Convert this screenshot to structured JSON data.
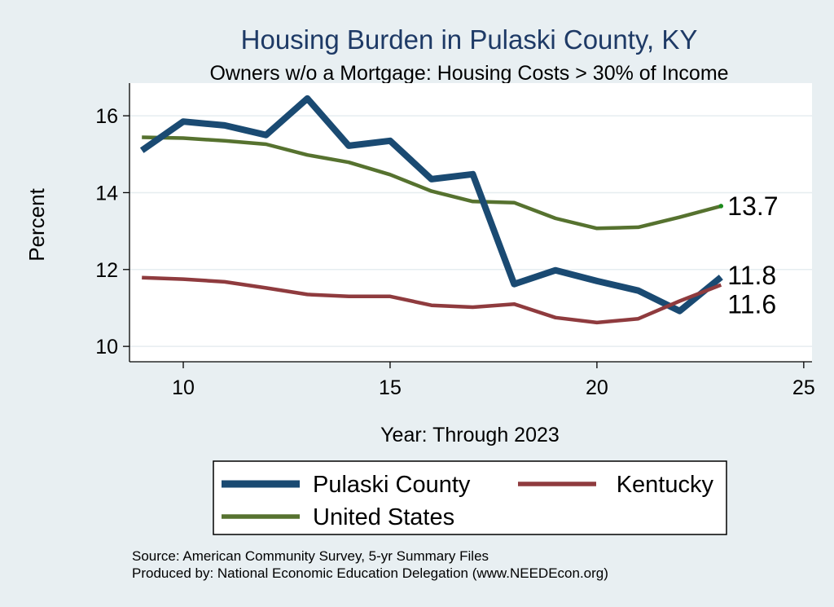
{
  "chart_data": {
    "type": "line",
    "title": "Housing Burden in Pulaski County, KY",
    "subtitle": "Owners w/o a Mortgage: Housing Costs > 30% of Income",
    "xlabel": "Year: Through 2023",
    "ylabel": "Percent",
    "xlim": [
      8.7,
      25.2
    ],
    "ylim": [
      9.6,
      16.85
    ],
    "xticks": [
      10,
      15,
      20,
      25
    ],
    "yticks": [
      10,
      12,
      14,
      16
    ],
    "grid": true,
    "legend_position": "bottom",
    "x": [
      9,
      10,
      11,
      12,
      13,
      14,
      15,
      16,
      17,
      18,
      19,
      20,
      21,
      22,
      23
    ],
    "series": [
      {
        "name": "Pulaski County",
        "color": "#1a4a72",
        "values": [
          15.1,
          15.85,
          15.75,
          15.5,
          16.45,
          15.22,
          15.35,
          14.35,
          14.48,
          11.62,
          11.98,
          11.7,
          11.45,
          10.92,
          11.8
        ],
        "end_label": "11.8"
      },
      {
        "name": "Kentucky",
        "color": "#8f3b3e",
        "values": [
          11.79,
          11.75,
          11.68,
          11.52,
          11.35,
          11.3,
          11.3,
          11.07,
          11.02,
          11.1,
          10.75,
          10.62,
          10.72,
          11.18,
          11.6
        ],
        "end_label": "11.6"
      },
      {
        "name": "United States",
        "color": "#56722f",
        "values": [
          15.44,
          15.42,
          15.35,
          15.26,
          14.98,
          14.79,
          14.47,
          14.04,
          13.77,
          13.74,
          13.33,
          13.07,
          13.1,
          13.36,
          13.65
        ],
        "end_label": "13.7"
      }
    ]
  },
  "footer": {
    "source": "Source: American Community Survey, 5-yr Summary Files",
    "produced_by": "Produced by: National Economic Education Delegation (www.NEEDEcon.org)"
  }
}
